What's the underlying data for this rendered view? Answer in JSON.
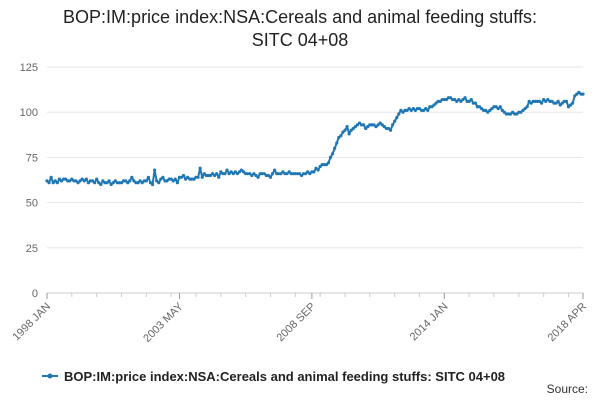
{
  "title_line1": "BOP:IM:price index:NSA:Cereals and animal feeding stuffs:",
  "title_line2": "SITC 04+08",
  "source_label": "Source:",
  "colors": {
    "series": "#1f77b4",
    "grid": "#e6e6e6",
    "axis": "#cccccc",
    "tick_text": "#666666"
  },
  "chart_data": {
    "type": "line",
    "title": "BOP:IM:price index:NSA:Cereals and animal feeding stuffs: SITC 04+08",
    "xlabel": "",
    "ylabel": "",
    "ylim": [
      0,
      125
    ],
    "yticks": [
      0,
      25,
      50,
      75,
      100,
      125
    ],
    "x_start": "1998 JAN",
    "x_end": "2018 APR",
    "xtick_labels": [
      "1998 JAN",
      "2003 MAY",
      "2008 SEP",
      "2014 JAN",
      "2018 APR"
    ],
    "grid": true,
    "legend_position": "bottom",
    "marker": "circle",
    "series": [
      {
        "name": "BOP:IM:price index:NSA:Cereals and animal feeding stuffs: SITC 04+08",
        "frequency": "monthly",
        "values": [
          62,
          61,
          64,
          61,
          62,
          61,
          63,
          62,
          63,
          63,
          62,
          62,
          63,
          62,
          62,
          61,
          62,
          63,
          62,
          63,
          61,
          62,
          62,
          61,
          63,
          61,
          60,
          62,
          61,
          61,
          62,
          60,
          61,
          62,
          61,
          61,
          61,
          62,
          62,
          61,
          62,
          64,
          62,
          61,
          61,
          62,
          61,
          62,
          62,
          64,
          61,
          60,
          68,
          62,
          61,
          63,
          64,
          62,
          62,
          63,
          63,
          62,
          63,
          61,
          64,
          64,
          65,
          63,
          64,
          63,
          63,
          63,
          64,
          64,
          69,
          64,
          66,
          65,
          65,
          65,
          66,
          65,
          66,
          64,
          67,
          66,
          66,
          68,
          66,
          67,
          66,
          67,
          66,
          67,
          68,
          67,
          66,
          66,
          66,
          65,
          66,
          65,
          64,
          66,
          66,
          66,
          65,
          65,
          64,
          66,
          68,
          66,
          66,
          66,
          67,
          66,
          66,
          67,
          66,
          66,
          66,
          66,
          66,
          65,
          66,
          66,
          67,
          66,
          67,
          67,
          69,
          68,
          70,
          71,
          71,
          71,
          72,
          75,
          77,
          80,
          83,
          86,
          87,
          89,
          90,
          92,
          88,
          90,
          91,
          92,
          93,
          94,
          93,
          93,
          91,
          92,
          93,
          93,
          93,
          92,
          93,
          94,
          93,
          92,
          91,
          91,
          90,
          93,
          95,
          97,
          99,
          101,
          100,
          101,
          101,
          102,
          101,
          102,
          101,
          102,
          102,
          101,
          101,
          102,
          101,
          103,
          103,
          104,
          105,
          106,
          106,
          107,
          107,
          107,
          108,
          108,
          107,
          107,
          106,
          107,
          106,
          107,
          108,
          106,
          106,
          107,
          105,
          105,
          103,
          103,
          102,
          101,
          101,
          100,
          101,
          102,
          103,
          103,
          102,
          103,
          101,
          100,
          99,
          99,
          99,
          100,
          99,
          99,
          100,
          100,
          101,
          102,
          103,
          106,
          105,
          106,
          106,
          106,
          106,
          105,
          107,
          106,
          107,
          106,
          106,
          105,
          105,
          106,
          104,
          105,
          106,
          106,
          103,
          104,
          105,
          109,
          110,
          111,
          110,
          110
        ]
      }
    ]
  }
}
